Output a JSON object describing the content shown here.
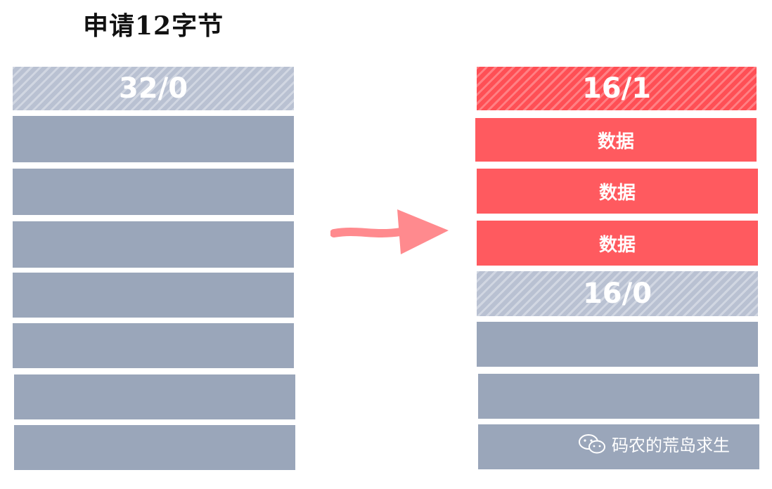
{
  "title": "申请12字节",
  "left_column": {
    "header_label": "32/0"
  },
  "right_column": {
    "header_label": "16/1",
    "data_labels": [
      "数据",
      "数据",
      "数据"
    ],
    "free_label": "16/0"
  },
  "watermark": {
    "text": "码农的荒岛求生",
    "icon": "wechat-icon"
  },
  "colors": {
    "gray_block": "#9aa6ba",
    "hatched_gray": "#b9c1d2",
    "red_block": "#ff5a5f",
    "arrow": "#ff8a8e"
  }
}
